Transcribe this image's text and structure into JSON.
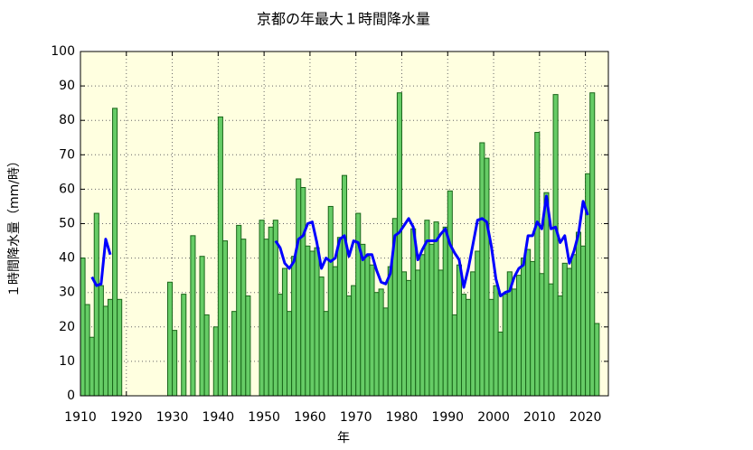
{
  "chart_data": {
    "type": "bar",
    "title": "京都の年最大１時間降水量",
    "xlabel": "年",
    "ylabel": "１時間降水量（mm/時）",
    "x": [
      1910,
      1911,
      1912,
      1913,
      1914,
      1915,
      1916,
      1917,
      1918,
      1919,
      1920,
      1921,
      1922,
      1923,
      1924,
      1925,
      1926,
      1927,
      1928,
      1929,
      1930,
      1931,
      1932,
      1933,
      1934,
      1935,
      1936,
      1937,
      1938,
      1939,
      1940,
      1941,
      1942,
      1943,
      1944,
      1945,
      1946,
      1947,
      1948,
      1949,
      1950,
      1951,
      1952,
      1953,
      1954,
      1955,
      1956,
      1957,
      1958,
      1959,
      1960,
      1961,
      1962,
      1963,
      1964,
      1965,
      1966,
      1967,
      1968,
      1969,
      1970,
      1971,
      1972,
      1973,
      1974,
      1975,
      1976,
      1977,
      1978,
      1979,
      1980,
      1981,
      1982,
      1983,
      1984,
      1985,
      1986,
      1987,
      1988,
      1989,
      1990,
      1991,
      1992,
      1993,
      1994,
      1995,
      1996,
      1997,
      1998,
      1999,
      2000,
      2001,
      2002,
      2003,
      2004,
      2005,
      2006,
      2007,
      2008,
      2009,
      2010,
      2011,
      2012,
      2013,
      2014,
      2015,
      2016,
      2017,
      2018,
      2019,
      2020,
      2021,
      2022
    ],
    "values": [
      40,
      26.5,
      17,
      53,
      32,
      26,
      28,
      83.5,
      28,
      null,
      null,
      null,
      null,
      null,
      null,
      null,
      null,
      null,
      null,
      33,
      19,
      null,
      29.5,
      null,
      46.5,
      null,
      40.5,
      23.5,
      null,
      20,
      81,
      45,
      null,
      24.5,
      49.5,
      45.5,
      29,
      null,
      null,
      51,
      45.5,
      49,
      51,
      29.5,
      37,
      24.5,
      40.5,
      63,
      60.5,
      43.5,
      42,
      43,
      34.5,
      24.5,
      55,
      37.5,
      46,
      64,
      29,
      32,
      53,
      44,
      40.5,
      38,
      30,
      31,
      25.5,
      37.5,
      51.5,
      88,
      36,
      33.5,
      48.5,
      36.5,
      41,
      51,
      44,
      50.5,
      36.5,
      49,
      59.5,
      23.5,
      38,
      29.5,
      28,
      36,
      42,
      73.5,
      69,
      28,
      32,
      18.5,
      29.5,
      36,
      31,
      35,
      40,
      42.5,
      39,
      76.5,
      35.5,
      59,
      32.5,
      87.5,
      29,
      38.5,
      37,
      41,
      47.5,
      43.5,
      64.5,
      88,
      21
    ],
    "color": "#66cc66",
    "moving_average": {
      "color": "#0000ff",
      "values": [
        null,
        null,
        34.5,
        32,
        32.5,
        45.5,
        41,
        null,
        null,
        null,
        null,
        null,
        null,
        null,
        null,
        null,
        null,
        null,
        null,
        null,
        null,
        null,
        null,
        null,
        null,
        null,
        null,
        null,
        null,
        null,
        null,
        null,
        null,
        null,
        null,
        null,
        null,
        null,
        null,
        null,
        null,
        null,
        45,
        43,
        38.5,
        37,
        39,
        45.5,
        46.5,
        50,
        50.5,
        44.5,
        37,
        40,
        39,
        40,
        45.5,
        46.5,
        40.5,
        45,
        44.5,
        39.5,
        41,
        41,
        36.5,
        33,
        32.5,
        35.5,
        46.5,
        47.5,
        49.5,
        51.5,
        49,
        39.5,
        42.5,
        45,
        45,
        45,
        47,
        48.5,
        44,
        41.5,
        39.5,
        31.5,
        37,
        44,
        51,
        51.5,
        50.5,
        43.5,
        34,
        29,
        30,
        30.5,
        34.5,
        37,
        38,
        46.5,
        46.5,
        50.5,
        48.5,
        58,
        48.5,
        49,
        44.5,
        46.5,
        38.5,
        42,
        47,
        56.5,
        52.5,
        null,
        null
      ]
    },
    "xlim": [
      1910,
      2025
    ],
    "ylim": [
      0,
      100
    ],
    "xticks": [
      1910,
      1920,
      1930,
      1940,
      1950,
      1960,
      1970,
      1980,
      1990,
      2000,
      2010,
      2020
    ],
    "yticks": [
      0,
      10,
      20,
      30,
      40,
      50,
      60,
      70,
      80,
      90,
      100
    ],
    "grid": true
  }
}
